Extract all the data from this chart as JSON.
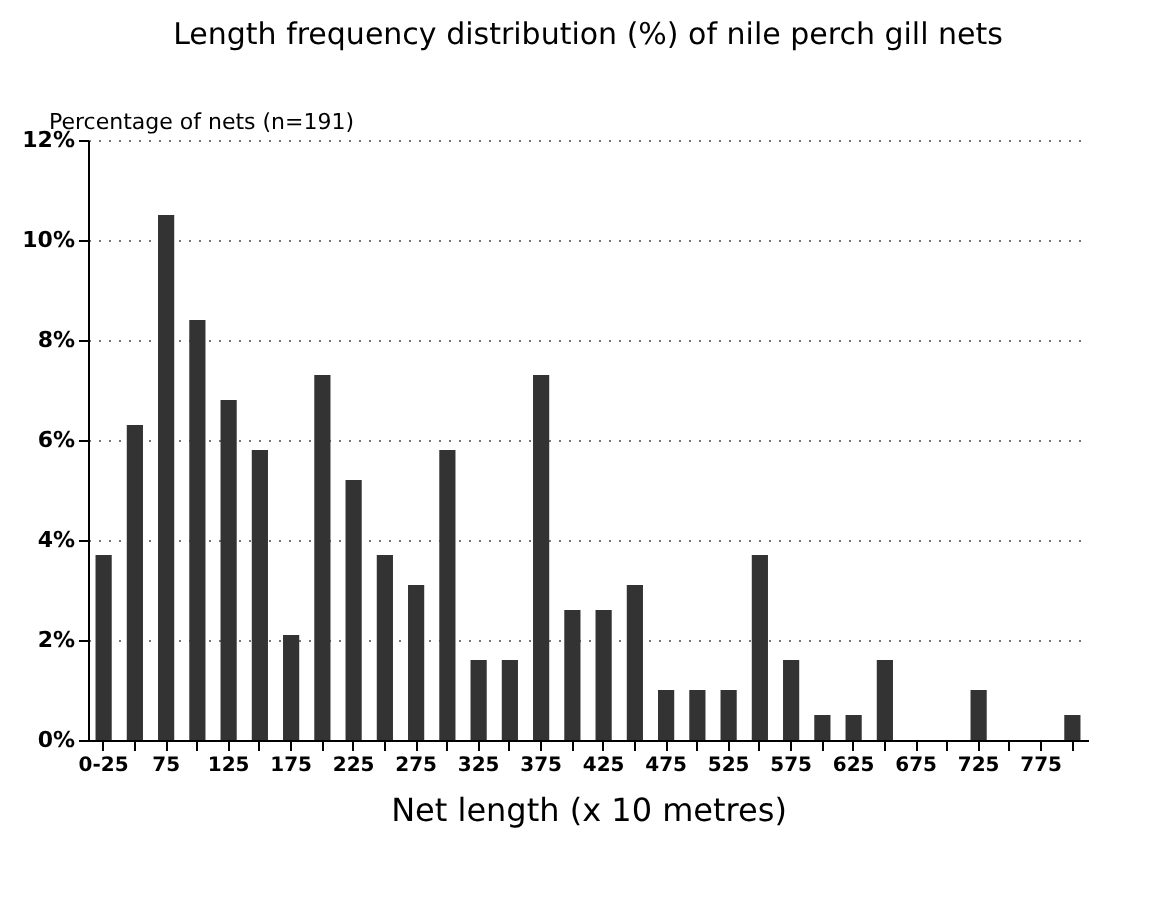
{
  "chart_data": {
    "type": "bar",
    "title": "Length frequency distribution (%)\nof nile perch gill nets",
    "ylabel": "Percentage of nets (n=191)",
    "xlabel": "Net length (x 10 metres)",
    "categories": [
      "0-25",
      null,
      "75",
      null,
      "125",
      null,
      "175",
      null,
      "225",
      null,
      "275",
      null,
      "325",
      null,
      "375",
      null,
      "425",
      null,
      "475",
      null,
      "525",
      null,
      "575",
      null,
      "625",
      null,
      "675",
      null,
      "725",
      null,
      "775",
      null
    ],
    "values": [
      3.7,
      6.3,
      10.5,
      8.4,
      6.8,
      5.8,
      2.1,
      7.3,
      5.2,
      3.7,
      3.1,
      5.8,
      1.6,
      1.6,
      7.3,
      2.6,
      2.6,
      3.1,
      1.0,
      1.0,
      1.0,
      3.7,
      1.6,
      0.5,
      0.5,
      1.6,
      0,
      0,
      1.0,
      0,
      0,
      0.5
    ],
    "color": "#333333",
    "ylim": [
      0,
      12
    ],
    "yticks": [
      {
        "value": 0,
        "label": "0%"
      },
      {
        "value": 2,
        "label": "2%"
      },
      {
        "value": 4,
        "label": "4%"
      },
      {
        "value": 6,
        "label": "6%"
      },
      {
        "value": 8,
        "label": "8%"
      },
      {
        "value": 10,
        "label": "10%"
      },
      {
        "value": 12,
        "label": "12%"
      }
    ],
    "grid": "y",
    "line_style": "dotted"
  }
}
